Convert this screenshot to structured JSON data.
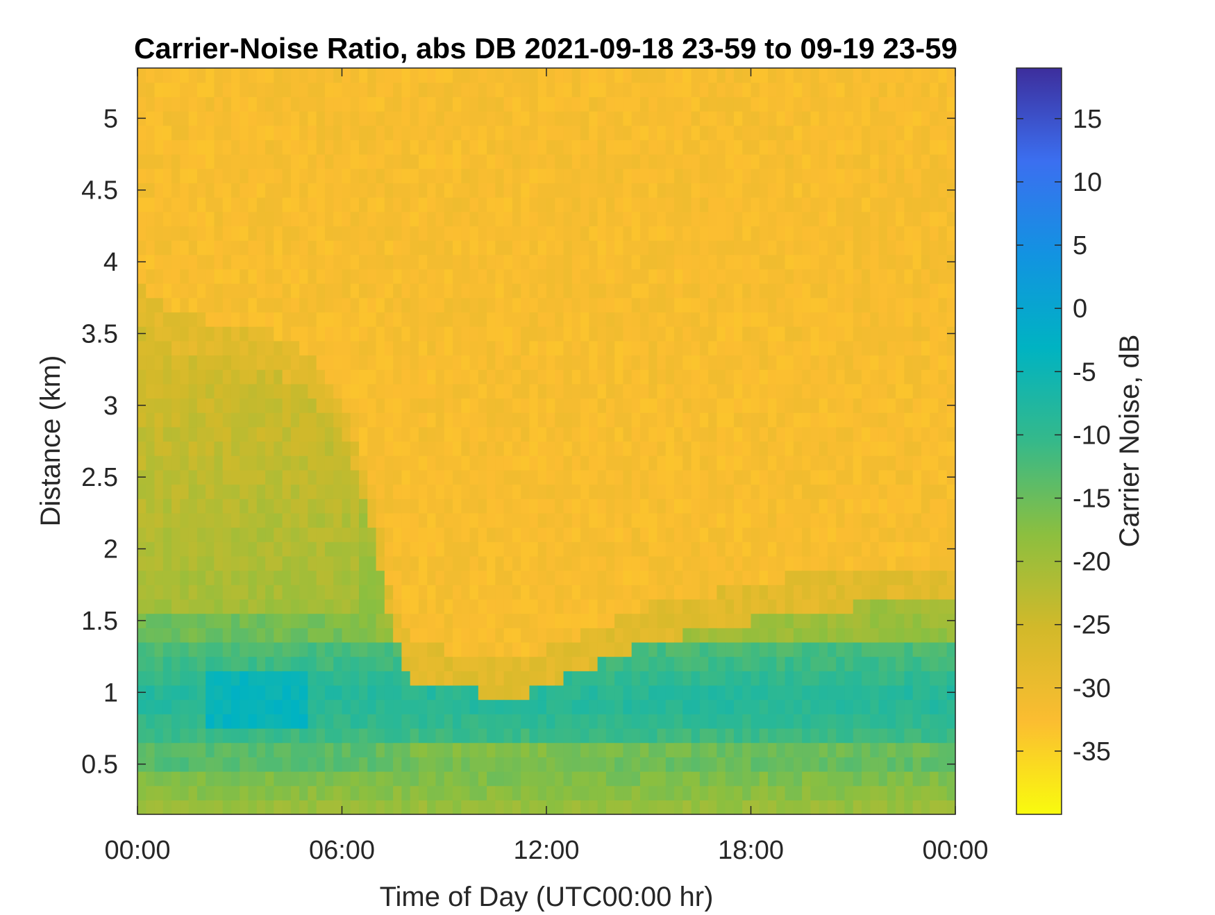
{
  "chart_data": {
    "type": "heatmap",
    "title": "Carrier-Noise Ratio, abs DB 2021-09-18 23-59 to 09-19 23-59",
    "xlabel": "Time of Day (UTC00:00 hr)",
    "ylabel": "Distance (km)",
    "colorbar_label": "Carrier Noise, dB",
    "x_range_hours": [
      0,
      24
    ],
    "y_range_km": [
      0.15,
      5.35
    ],
    "color_range_db": [
      -40,
      19
    ],
    "x_ticks": [
      {
        "value": 0,
        "label": "00:00"
      },
      {
        "value": 6,
        "label": "06:00"
      },
      {
        "value": 12,
        "label": "12:00"
      },
      {
        "value": 18,
        "label": "18:00"
      },
      {
        "value": 24,
        "label": "00:00"
      }
    ],
    "y_ticks": [
      {
        "value": 0.5,
        "label": "0.5"
      },
      {
        "value": 1,
        "label": "1"
      },
      {
        "value": 1.5,
        "label": "1.5"
      },
      {
        "value": 2,
        "label": "2"
      },
      {
        "value": 2.5,
        "label": "2.5"
      },
      {
        "value": 3,
        "label": "3"
      },
      {
        "value": 3.5,
        "label": "3.5"
      },
      {
        "value": 4,
        "label": "4"
      },
      {
        "value": 4.5,
        "label": "4.5"
      },
      {
        "value": 5,
        "label": "5"
      }
    ],
    "colorbar_ticks": [
      {
        "value": -35,
        "label": "-35"
      },
      {
        "value": -30,
        "label": "-30"
      },
      {
        "value": -25,
        "label": "-25"
      },
      {
        "value": -20,
        "label": "-20"
      },
      {
        "value": -15,
        "label": "-15"
      },
      {
        "value": -10,
        "label": "-10"
      },
      {
        "value": -5,
        "label": "-5"
      },
      {
        "value": 0,
        "label": "0"
      },
      {
        "value": 5,
        "label": "5"
      },
      {
        "value": 10,
        "label": "10"
      },
      {
        "value": 15,
        "label": "15"
      }
    ],
    "colormap": "parula (reversed: yellow = low, dark blue = high)",
    "colormap_stops": [
      "#f9fb0e",
      "#fbbd31",
      "#d2b92a",
      "#8cbf3f",
      "#35b98a",
      "#00b3c2",
      "#1293e1",
      "#3b6ff0",
      "#3d2e9c"
    ],
    "background_level_db": -32,
    "boundary_profile": {
      "description": "approximate top height (km) of the low-level enhanced-signal layer over time",
      "hours": [
        0,
        1,
        2,
        3,
        4,
        5,
        6,
        7,
        7.5,
        8,
        9,
        10,
        11,
        12,
        13,
        14,
        15,
        16,
        17,
        18,
        19,
        20,
        21,
        22,
        23,
        24
      ],
      "top_km": [
        3.6,
        3.4,
        3.35,
        3.3,
        3.25,
        3.1,
        2.8,
        2.0,
        1.4,
        1.1,
        1.05,
        1.0,
        0.95,
        1.05,
        1.15,
        1.25,
        1.35,
        1.4,
        1.45,
        1.5,
        1.55,
        1.55,
        1.6,
        1.62,
        1.62,
        1.6
      ]
    }
  }
}
